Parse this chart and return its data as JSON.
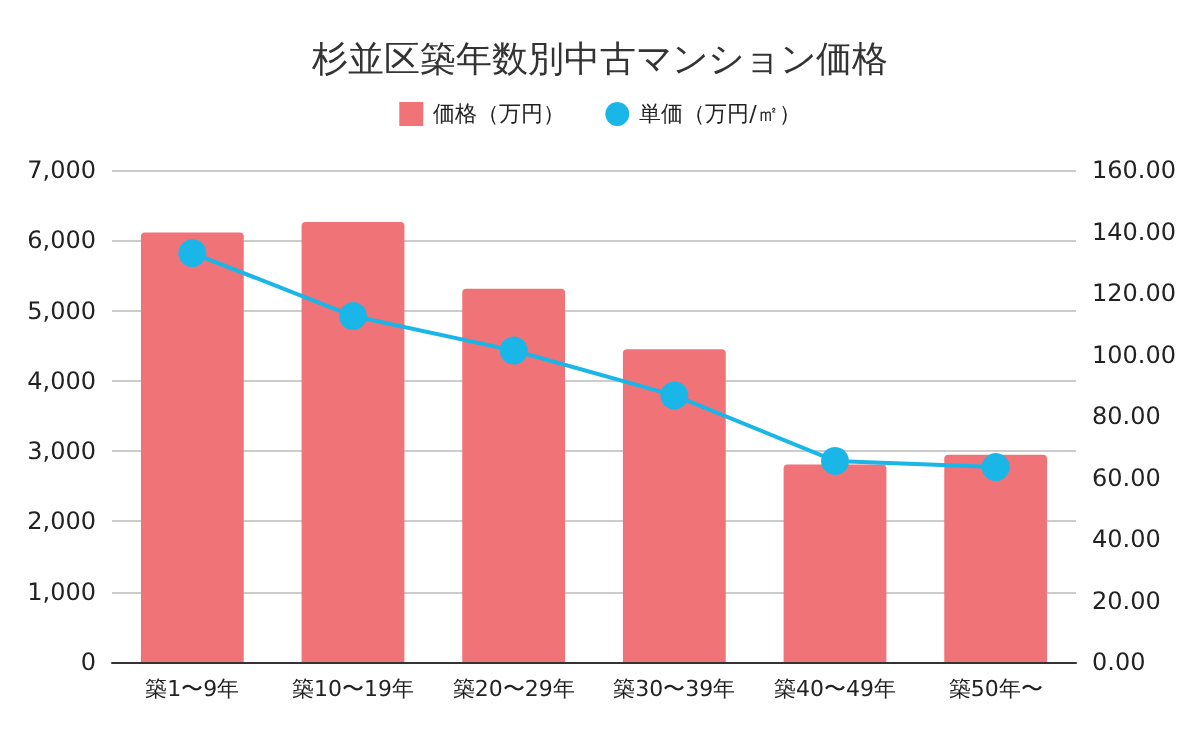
{
  "chart_data": {
    "type": "bar",
    "title": "杉並区築年数別中古マンション価格",
    "categories": [
      "築1〜9年",
      "築10〜19年",
      "築20〜29年",
      "築30〜39年",
      "築40〜49年",
      "築50年〜"
    ],
    "series": [
      {
        "name": "価格（万円）",
        "color": "#f07378",
        "values": [
          6110,
          6260,
          5310,
          4450,
          2810,
          2950
        ]
      },
      {
        "name": "単価（万円/㎡）",
        "type": "line",
        "axis": "y2",
        "color": "#1ab6e8",
        "values": [
          133,
          112.5,
          101.3,
          86.7,
          65.4,
          63.4
        ]
      }
    ],
    "ylim": [
      0,
      7000
    ],
    "yticks": [
      0,
      {
        "value": 1000,
        "label": "1,000"
      },
      {
        "value": 2000,
        "label": "2,000"
      },
      {
        "value": 3000,
        "label": "3,000"
      },
      {
        "value": 4000,
        "label": "4,000"
      },
      {
        "value": 5000,
        "label": "5,000"
      },
      {
        "value": 6000,
        "label": "6,000"
      },
      {
        "value": 7000,
        "label": "7,000"
      }
    ],
    "y2lim": [
      0,
      160
    ],
    "y2ticks": [
      {
        "value": 0,
        "label": "0.00"
      },
      {
        "value": 20,
        "label": "20.00"
      },
      {
        "value": 40,
        "label": "40.00"
      },
      {
        "value": 60,
        "label": "60.00"
      },
      {
        "value": 80,
        "label": "80.00"
      },
      {
        "value": 100,
        "label": "100.00"
      },
      {
        "value": 120,
        "label": "120.00"
      },
      {
        "value": 140,
        "label": "140.00"
      },
      {
        "value": 160,
        "label": "160.00"
      }
    ],
    "grid": "y",
    "legend": "top",
    "marker": "circle"
  }
}
